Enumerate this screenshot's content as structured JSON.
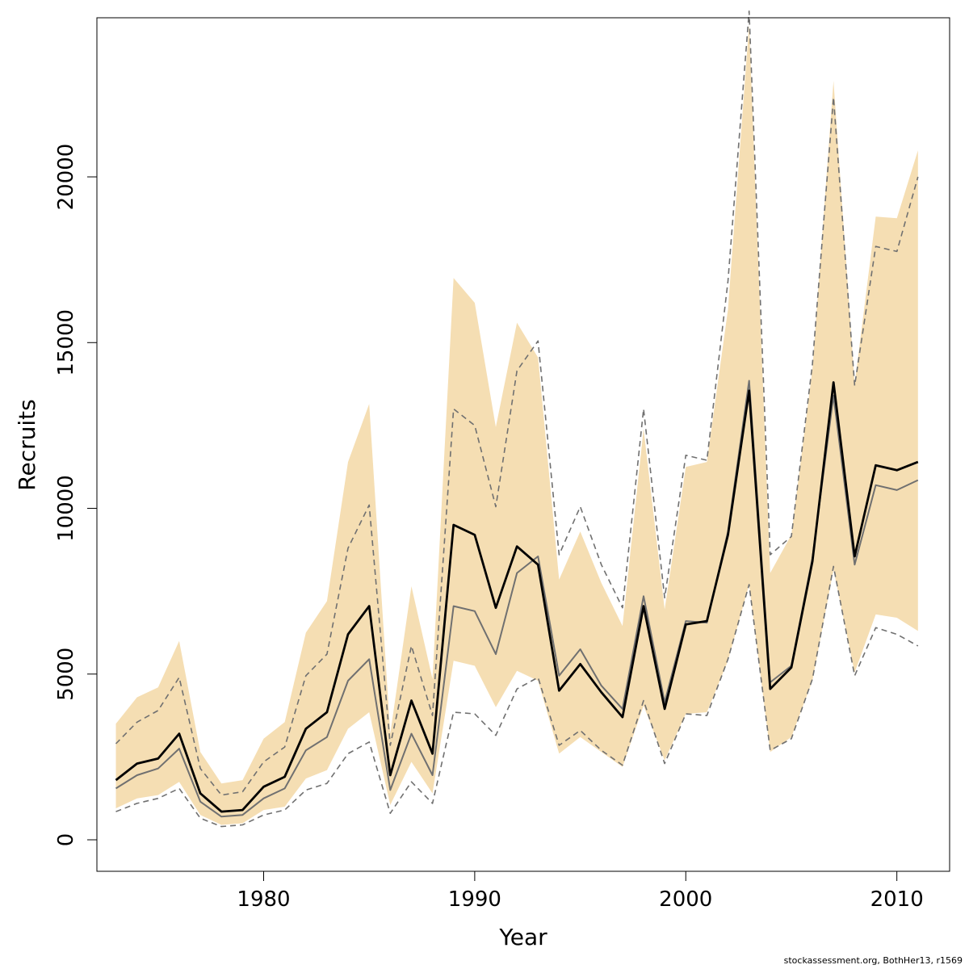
{
  "chart_data": {
    "type": "line",
    "title": "",
    "xlabel": "Year",
    "ylabel": "Recruits",
    "xlim": [
      1972.1,
      2012.5
    ],
    "ylim": [
      -950,
      24800
    ],
    "xticks": [
      1980,
      1990,
      2000,
      2010
    ],
    "yticks": [
      0,
      5000,
      10000,
      15000,
      20000
    ],
    "grid": false,
    "colors": {
      "band": "#f5deb3",
      "main": "#000000",
      "secondary": "#707070",
      "dashed": "#707070"
    },
    "x": [
      1973,
      1974,
      1975,
      1976,
      1977,
      1978,
      1979,
      1980,
      1981,
      1982,
      1983,
      1984,
      1985,
      1986,
      1987,
      1988,
      1989,
      1990,
      1991,
      1992,
      1993,
      1994,
      1995,
      1996,
      1997,
      1998,
      1999,
      2000,
      2001,
      2002,
      2003,
      2004,
      2005,
      2006,
      2007,
      2008,
      2009,
      2010,
      2011
    ],
    "series": [
      {
        "role": "band_upper",
        "values": [
          3500,
          4300,
          4600,
          6000,
          2650,
          1700,
          1800,
          3050,
          3550,
          6250,
          7200,
          11400,
          13150,
          3200,
          7650,
          4850,
          16950,
          16200,
          12450,
          15600,
          14550,
          7850,
          9300,
          7750,
          6450,
          12400,
          6950,
          11250,
          11400,
          16000,
          24600,
          8050,
          9200,
          14200,
          22900,
          13750,
          18800,
          18750,
          20800
        ]
      },
      {
        "role": "band_lower",
        "values": [
          950,
          1250,
          1350,
          1750,
          750,
          450,
          500,
          900,
          1000,
          1850,
          2100,
          3350,
          3850,
          1050,
          2350,
          1400,
          5400,
          5250,
          4000,
          5100,
          4800,
          2600,
          3100,
          2650,
          2200,
          4050,
          2400,
          3800,
          3850,
          5400,
          7700,
          2650,
          3100,
          4800,
          8150,
          5050,
          6800,
          6700,
          6300
        ]
      },
      {
        "role": "main_line",
        "values": [
          1800,
          2300,
          2450,
          3200,
          1400,
          850,
          900,
          1600,
          1900,
          3350,
          3850,
          6200,
          7050,
          1950,
          4200,
          2600,
          9500,
          9200,
          7000,
          8850,
          8300,
          4500,
          5300,
          4450,
          3700,
          7050,
          3950,
          6500,
          6600,
          9200,
          13550,
          4550,
          5200,
          8400,
          13800,
          8550,
          11300,
          11150,
          11400
        ]
      },
      {
        "role": "secondary_line",
        "values": [
          1550,
          1950,
          2150,
          2750,
          1150,
          700,
          750,
          1250,
          1550,
          2700,
          3100,
          4800,
          5450,
          1500,
          3200,
          1950,
          7050,
          6900,
          5600,
          8050,
          8550,
          4950,
          5750,
          4650,
          3950,
          7350,
          4150,
          6600,
          6550,
          9300,
          13850,
          4750,
          5250,
          8500,
          13400,
          8300,
          10700,
          10550,
          10850
        ]
      },
      {
        "role": "dashed_upper",
        "values": [
          2900,
          3550,
          3900,
          4900,
          2150,
          1350,
          1450,
          2350,
          2800,
          4950,
          5600,
          8800,
          10100,
          2850,
          5850,
          3750,
          13000,
          12500,
          10050,
          14150,
          15050,
          8600,
          10050,
          8300,
          7000,
          13000,
          7300,
          11600,
          11450,
          16850,
          25000,
          8600,
          9150,
          14350,
          22400,
          13700,
          17900,
          17750,
          20000
        ]
      },
      {
        "role": "dashed_lower",
        "values": [
          850,
          1100,
          1250,
          1550,
          650,
          400,
          450,
          750,
          900,
          1500,
          1700,
          2600,
          2950,
          800,
          1750,
          1100,
          3850,
          3800,
          3150,
          4550,
          4900,
          2850,
          3300,
          2700,
          2250,
          4200,
          2300,
          3800,
          3750,
          5450,
          7700,
          2700,
          3050,
          4850,
          8250,
          4950,
          6400,
          6200,
          5850
        ]
      }
    ]
  },
  "footer": {
    "credit": "stockassessment.org, BothHer13, r1569"
  }
}
